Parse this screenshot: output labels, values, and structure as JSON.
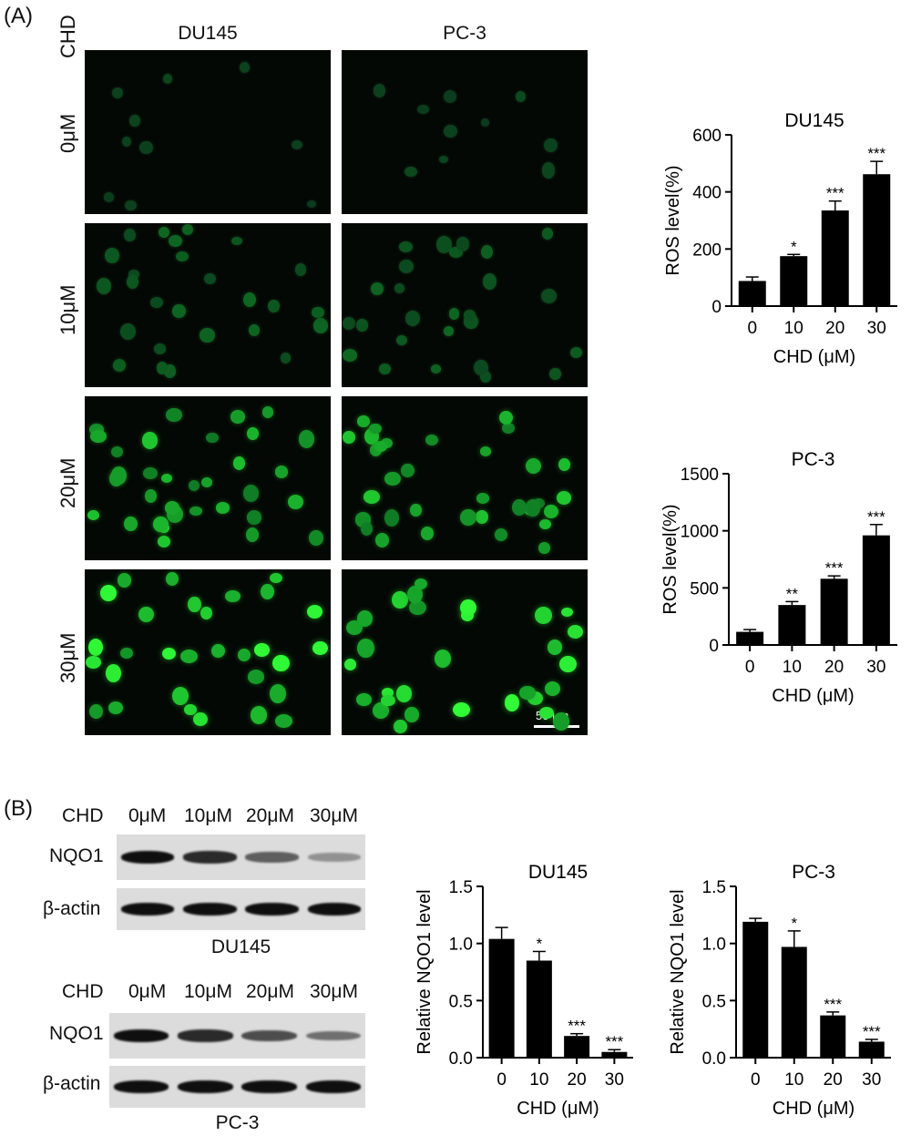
{
  "panel_a": {
    "label": "(A)",
    "treatment_label": "CHD",
    "columns": [
      "DU145",
      "PC-3"
    ],
    "rows": [
      "0μM",
      "10μM",
      "20μM",
      "30μM"
    ],
    "scale_bar": "50 μm"
  },
  "panel_b": {
    "label": "(B)",
    "blots": [
      {
        "cell_line": "DU145",
        "treatment_label": "CHD",
        "lanes": [
          "0μM",
          "10μM",
          "20μM",
          "30μM"
        ],
        "proteins": [
          "NQO1",
          "β-actin"
        ],
        "nqo1_intensity": [
          1.0,
          0.85,
          0.55,
          0.25
        ],
        "actin_intensity": [
          1.0,
          1.0,
          1.0,
          1.0
        ]
      },
      {
        "cell_line": "PC-3",
        "treatment_label": "CHD",
        "lanes": [
          "0μM",
          "10μM",
          "20μM",
          "30μM"
        ],
        "proteins": [
          "NQO1",
          "β-actin"
        ],
        "nqo1_intensity": [
          1.0,
          0.85,
          0.65,
          0.45
        ],
        "actin_intensity": [
          1.0,
          1.0,
          1.0,
          1.0
        ]
      }
    ]
  },
  "chart_data": [
    {
      "type": "bar",
      "title": "DU145",
      "xlabel": "CHD (μM)",
      "ylabel": "ROS level(%)",
      "categories": [
        "0",
        "10",
        "20",
        "30"
      ],
      "values": [
        88,
        175,
        335,
        462
      ],
      "errors": [
        14,
        6,
        33,
        45
      ],
      "significance": [
        "",
        "*",
        "***",
        "***"
      ],
      "ylim": [
        0,
        600
      ],
      "yticks": [
        "0",
        "200",
        "400",
        "600"
      ],
      "color": "#000000"
    },
    {
      "type": "bar",
      "title": "PC-3",
      "xlabel": "CHD (μM)",
      "ylabel": "ROS level(%)",
      "categories": [
        "0",
        "10",
        "20",
        "30"
      ],
      "values": [
        115,
        350,
        580,
        960
      ],
      "errors": [
        20,
        30,
        25,
        95
      ],
      "significance": [
        "",
        "**",
        "***",
        "***"
      ],
      "ylim": [
        0,
        1500
      ],
      "yticks": [
        "0",
        "500",
        "1000",
        "1500"
      ],
      "color": "#000000"
    },
    {
      "type": "bar",
      "title": "DU145",
      "xlabel": "CHD (μM)",
      "ylabel": "Relative NQO1 level",
      "categories": [
        "0",
        "10",
        "20",
        "30"
      ],
      "values": [
        1.04,
        0.85,
        0.19,
        0.05
      ],
      "errors": [
        0.1,
        0.08,
        0.02,
        0.02
      ],
      "significance": [
        "",
        "*",
        "***",
        "***"
      ],
      "ylim": [
        0,
        1.5
      ],
      "yticks": [
        "0.0",
        "0.5",
        "1.0",
        "1.5"
      ],
      "color": "#000000"
    },
    {
      "type": "bar",
      "title": "PC-3",
      "xlabel": "CHD (μM)",
      "ylabel": "Relative NQO1 level",
      "categories": [
        "0",
        "10",
        "20",
        "30"
      ],
      "values": [
        1.19,
        0.97,
        0.37,
        0.14
      ],
      "errors": [
        0.03,
        0.14,
        0.03,
        0.02
      ],
      "significance": [
        "",
        "*",
        "***",
        "***"
      ],
      "ylim": [
        0,
        1.5
      ],
      "yticks": [
        "0.0",
        "0.5",
        "1.0",
        "1.5"
      ],
      "color": "#000000"
    }
  ]
}
